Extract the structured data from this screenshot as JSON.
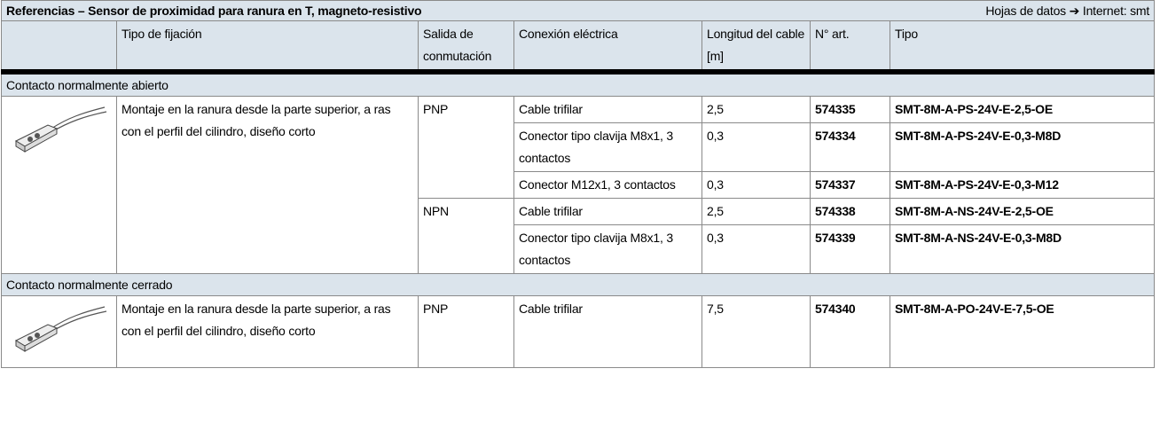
{
  "header": {
    "title": "Referencias – Sensor de proximidad para ranura en T, magneto-resistivo",
    "right_note": "Hojas de datos ➔ Internet: smt"
  },
  "columns": [
    "Tipo de fijación",
    "Salida de conmutación",
    "Conexión eléctrica",
    "Longitud del cable [m]",
    "N° art.",
    "Tipo"
  ],
  "sections": [
    {
      "label": "Contacto normalmente abierto",
      "mounting": "Montaje en la ranura desde la parte superior,  a ras con el perfil del cilindro, diseño corto",
      "outputs": [
        {
          "signal": "PNP",
          "items": [
            {
              "connection": "Cable trifilar",
              "length": "2,5",
              "part_no": "574335",
              "type": "SMT-8M-A-PS-24V-E-2,5-OE"
            },
            {
              "connection": "Conector tipo clavija M8x1, 3 contactos",
              "length": "0,3",
              "part_no": "574334",
              "type": "SMT-8M-A-PS-24V-E-0,3-M8D"
            },
            {
              "connection": "Conector M12x1, 3 contactos",
              "length": "0,3",
              "part_no": "574337",
              "type": "SMT-8M-A-PS-24V-E-0,3-M12"
            }
          ]
        },
        {
          "signal": "NPN",
          "items": [
            {
              "connection": "Cable trifilar",
              "length": "2,5",
              "part_no": "574338",
              "type": "SMT-8M-A-NS-24V-E-2,5-OE"
            },
            {
              "connection": "Conector tipo clavija M8x1, 3 contactos",
              "length": "0,3",
              "part_no": "574339",
              "type": "SMT-8M-A-NS-24V-E-0,3-M8D"
            }
          ]
        }
      ]
    },
    {
      "label": "Contacto normalmente cerrado",
      "mounting": "Montaje en la ranura desde la parte superior, a ras con el perfil del cilindro, diseño corto",
      "outputs": [
        {
          "signal": "PNP",
          "items": [
            {
              "connection": "Cable trifilar",
              "length": "7,5",
              "part_no": "574340",
              "type": "SMT-8M-A-PO-24V-E-7,5-OE"
            }
          ]
        }
      ]
    }
  ]
}
